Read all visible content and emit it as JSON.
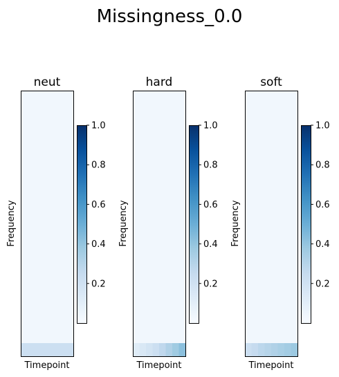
{
  "title": "Missingness_0.0",
  "colormap": "Blues",
  "panels": [
    {
      "title": "neut",
      "xlabel": "Timepoint",
      "ylabel": "Frequency"
    },
    {
      "title": "hard",
      "xlabel": "Timepoint",
      "ylabel": "Frequency"
    },
    {
      "title": "soft",
      "xlabel": "Timepoint",
      "ylabel": "Frequency"
    }
  ],
  "colorbar": {
    "ticks": [
      "1.0",
      "0.8",
      "0.6",
      "0.4",
      "0.2"
    ],
    "range": [
      0,
      1
    ]
  },
  "chart_data": {
    "type": "heatmap",
    "title": "Missingness_0.0",
    "panels": [
      {
        "name": "neut",
        "xlabel": "Timepoint",
        "ylabel": "Frequency",
        "background_value": 0.03,
        "bottom_row_values": [
          0.22,
          0.22,
          0.22,
          0.22,
          0.22,
          0.22,
          0.22,
          0.22
        ]
      },
      {
        "name": "hard",
        "xlabel": "Timepoint",
        "ylabel": "Frequency",
        "background_value": 0.03,
        "bottom_row_values": [
          0.12,
          0.15,
          0.18,
          0.22,
          0.27,
          0.32,
          0.37,
          0.42
        ]
      },
      {
        "name": "soft",
        "xlabel": "Timepoint",
        "ylabel": "Frequency",
        "background_value": 0.03,
        "bottom_row_values": [
          0.22,
          0.25,
          0.28,
          0.3,
          0.32,
          0.34,
          0.36,
          0.38
        ]
      }
    ],
    "colorbar_range": [
      0,
      1
    ],
    "colorbar_ticks": [
      0.2,
      0.4,
      0.6,
      0.8,
      1.0
    ]
  }
}
